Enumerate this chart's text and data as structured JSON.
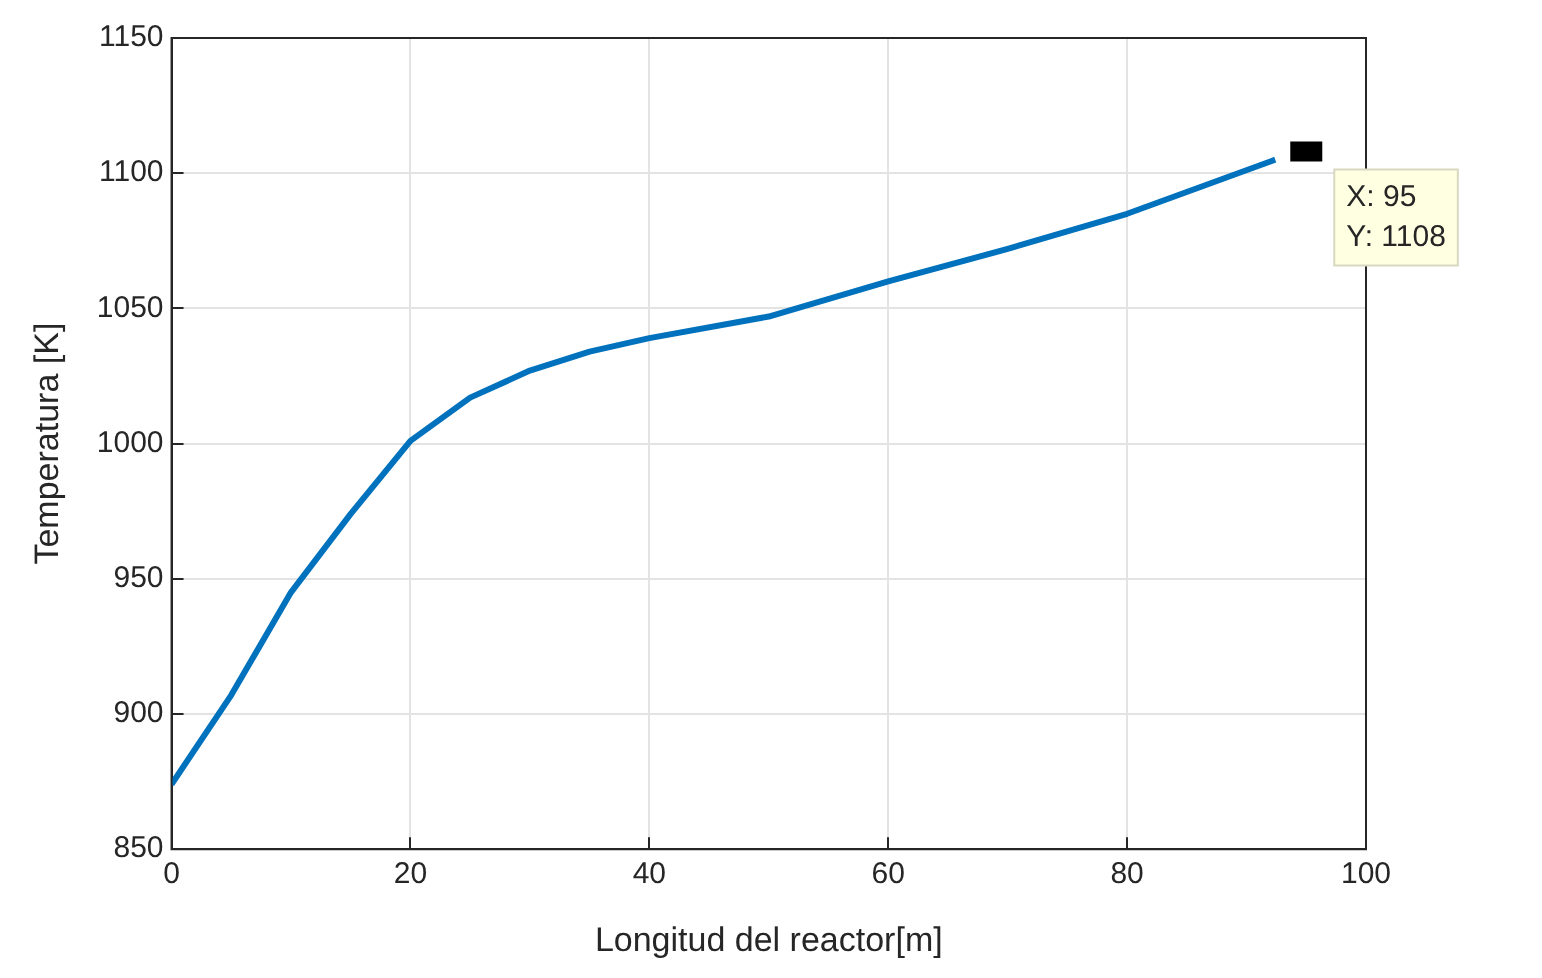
{
  "chart_data": {
    "type": "line",
    "xlabel": "Longitud del reactor[m]",
    "ylabel": "Temperatura [K]",
    "x": [
      0,
      5,
      10,
      15,
      20,
      25,
      30,
      35,
      40,
      50,
      60,
      70,
      80,
      92.4
    ],
    "series": [
      {
        "color": "#0072bd",
        "values": [
          874,
          907,
          945,
          974,
          1001,
          1017,
          1027,
          1034,
          1039,
          1047,
          1060,
          1072,
          1085,
          1105
        ]
      }
    ],
    "xlim": [
      0,
      100
    ],
    "xticks": [
      0,
      20,
      40,
      60,
      80,
      100
    ],
    "ylim": [
      850,
      1150
    ],
    "yticks": [
      850,
      900,
      950,
      1000,
      1050,
      1100,
      1150
    ],
    "grid": true,
    "legend": false,
    "marker": "none",
    "line_style": "solid",
    "annotations": [
      {
        "text": "X: 95\nY: 1108",
        "x": 95,
        "y": 1108
      }
    ]
  }
}
